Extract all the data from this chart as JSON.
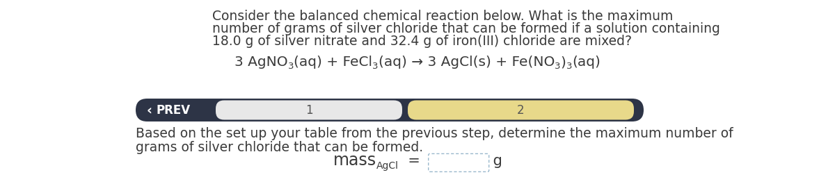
{
  "bg_color": "#ffffff",
  "question_text_line1": "Consider the balanced chemical reaction below. What is the maximum",
  "question_text_line2": "number of grams of silver chloride that can be formed if a solution containing",
  "question_text_line3": "18.0 g of silver nitrate and 32.4 g of iron(III) chloride are mixed?",
  "nav_bar_color": "#2d3446",
  "nav_bar_step1_color": "#e8e8e8",
  "nav_bar_step2_color": "#e8d98a",
  "nav_prev_text": "PREV",
  "nav_step1_text": "1",
  "nav_step2_text": "2",
  "body_text_line1": "Based on the set up your table from the previous step, determine the maximum number of",
  "body_text_line2": "grams of silver chloride that can be formed.",
  "text_color": "#3a3a3a",
  "white": "#ffffff",
  "input_box_border": "#99b8cc",
  "font_size_body": 13.5,
  "font_size_equation": 14.5,
  "font_size_nav": 12,
  "font_size_mass_main": 17,
  "font_size_mass_sub": 10,
  "font_size_mass_eq": 15
}
